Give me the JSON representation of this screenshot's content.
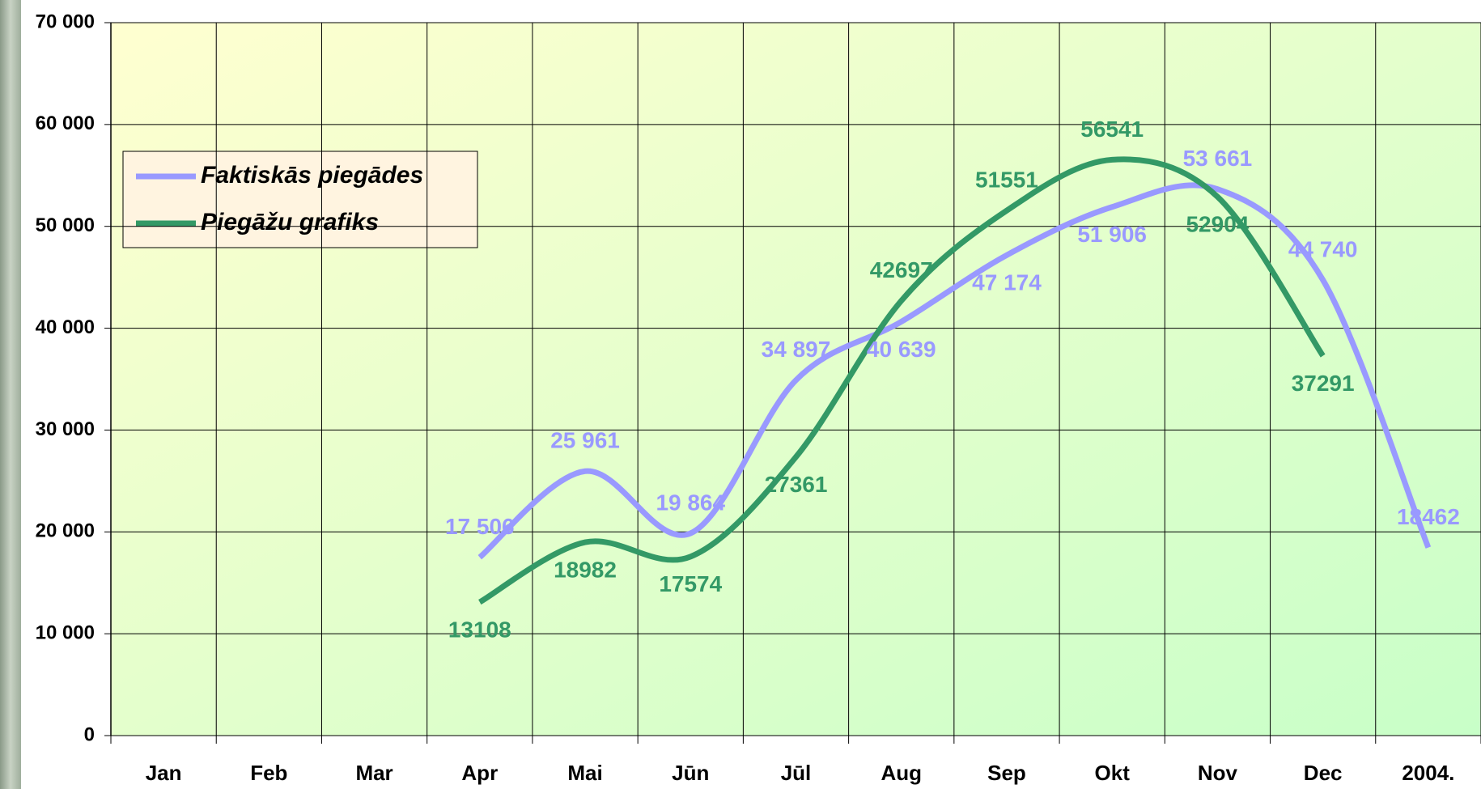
{
  "chart_data": {
    "type": "line",
    "categories": [
      "Jan",
      "Feb",
      "Mar",
      "Apr",
      "Mai",
      "Jūn",
      "Jūl",
      "Aug",
      "Sep",
      "Okt",
      "Nov",
      "Dec",
      "2004."
    ],
    "series": [
      {
        "name": "Faktiskās piegādes",
        "color": "#9999ff",
        "values": [
          null,
          null,
          null,
          17506,
          25961,
          19864,
          34897,
          40639,
          47174,
          51906,
          53661,
          44740,
          18462
        ],
        "value_labels": [
          null,
          null,
          null,
          "17 506",
          "25 961",
          "19 864",
          "34 897",
          "40 639",
          "47 174",
          "51 906",
          "53 661",
          "44 740",
          "18462"
        ]
      },
      {
        "name": "Piegāžu grafiks",
        "color": "#339966",
        "values": [
          null,
          null,
          null,
          13108,
          18982,
          17574,
          27361,
          42697,
          51551,
          56541,
          52904,
          37291,
          null
        ]
      }
    ],
    "ylim": [
      0,
      70000
    ],
    "yticks": [
      0,
      {
        "value": 10000,
        "label": "10 000"
      },
      {
        "value": 20000,
        "label": "20 000"
      },
      {
        "value": 30000,
        "label": "30 000"
      },
      {
        "value": 40000,
        "label": "40 000"
      },
      {
        "value": 50000,
        "label": "50 000"
      },
      {
        "value": 60000,
        "label": "60 000"
      },
      {
        "value": 70000,
        "label": "70 000"
      }
    ],
    "grid": true
  }
}
